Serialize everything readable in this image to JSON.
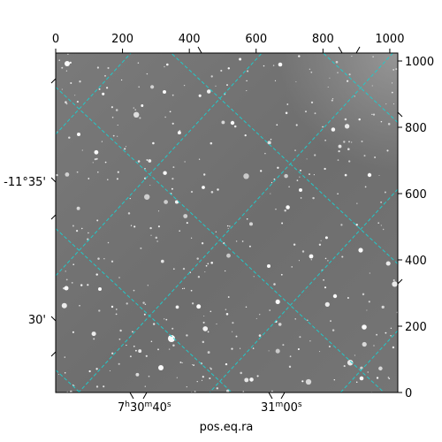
{
  "chart_data": {
    "type": "image",
    "xlabel": "pos.eq.ra",
    "ylabel": "",
    "pixel_axes": {
      "x_top": {
        "range": [
          0,
          1024
        ],
        "ticks": [
          0,
          200,
          400,
          600,
          800,
          1000
        ]
      },
      "y_right": {
        "range": [
          0,
          1024
        ],
        "ticks": [
          0,
          200,
          400,
          600,
          800,
          1000
        ]
      }
    },
    "world_axes": {
      "ra_ticks": [
        {
          "label": "7h30m40s",
          "main": "7",
          "unit1": "h",
          "mid": "30",
          "unit2": "m",
          "sec": "40",
          "unit3": "s"
        },
        {
          "label": "31m00s",
          "main": "31",
          "unit1": "m",
          "mid": "00",
          "unit2": "s",
          "sec": "",
          "unit3": ""
        }
      ],
      "dec_ticks": [
        {
          "label": "-11°35'"
        },
        {
          "label": "30'"
        }
      ]
    },
    "grid": true,
    "grid_color": "#21c9c9",
    "image_style": "grayscale star field"
  }
}
